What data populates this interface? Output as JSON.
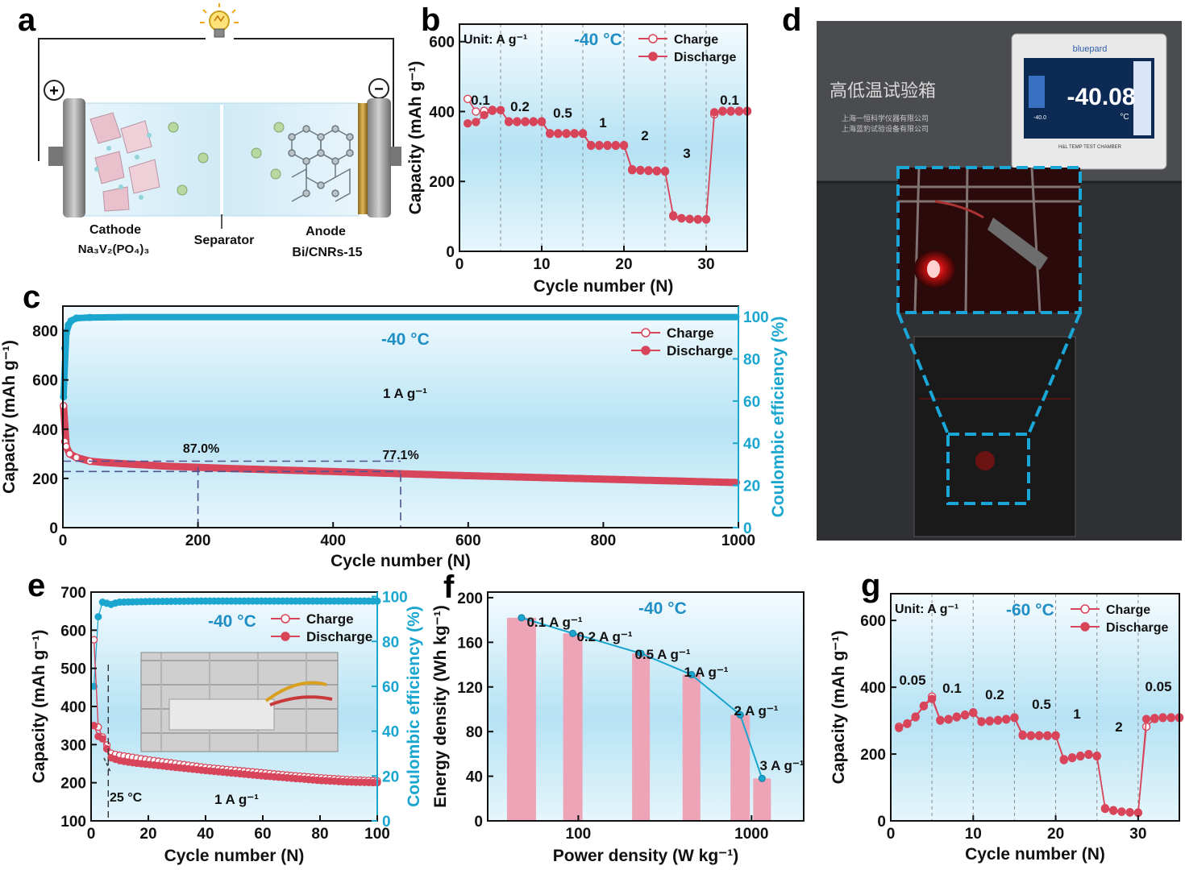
{
  "colors": {
    "charge": "#d8455a",
    "discharge": "#d8455a",
    "ce": "#1aa6cf",
    "bar": "#eca4b6",
    "bg_top": "#d8f0fa",
    "bg_mid": "#9fd8ef",
    "dash": "#52528f"
  },
  "panels": {
    "a": {
      "letter": "a",
      "cathode_label": "Cathode",
      "cathode_formula": "Na₃V₂(PO₄)₃",
      "separator_label": "Separator",
      "anode_label": "Anode",
      "anode_material": "Bi/CNRs-15",
      "plus_symbol": "+",
      "minus_symbol": "−",
      "icons": [
        "light-bulb-icon"
      ]
    },
    "d": {
      "letter": "d",
      "chamber_label": "高低温试验箱",
      "brand": "bluepard",
      "company_line1": "上海一恒科学仪器有限公司",
      "company_line2": "上海蓝豹试验设备有限公司",
      "display_value": "-40.08",
      "display_unit": "°C",
      "display_small": "-40.0",
      "footer_label": "H&L TEMP TEST CHAMBER"
    },
    "e_inset": {
      "label_25c": "25 °C"
    }
  },
  "chart_data": [
    {
      "id": "b",
      "letter": "b",
      "type": "scatter",
      "title": "",
      "xlabel": "Cycle number (N)",
      "ylabel": "Capacity (mAh g⁻¹)",
      "xlim": [
        0,
        35
      ],
      "ylim": [
        0,
        650
      ],
      "xticks": [
        0,
        10,
        20,
        30
      ],
      "yticks": [
        0,
        200,
        400,
        600
      ],
      "unit_note": "Unit: A g⁻¹",
      "temperature": "-40 °C",
      "legend": [
        "Charge",
        "Discharge"
      ],
      "rate_labels": [
        {
          "text": "0.1",
          "x": 2.5,
          "y": 450
        },
        {
          "text": "0.2",
          "x": 7.2,
          "y": 425
        },
        {
          "text": "0.5",
          "x": 2.5,
          "y": 405,
          "shift": 10
        },
        {
          "text": "1",
          "x": 17.4,
          "y": 385
        },
        {
          "text": "2",
          "x": 22.6,
          "y": 325
        },
        {
          "text": "3",
          "x": 27.6,
          "y": 270
        },
        {
          "text": "0.1",
          "x": 32.8,
          "y": 450
        }
      ],
      "dividers": [
        5,
        10,
        15,
        20,
        25,
        30
      ],
      "series": [
        {
          "name": "Charge",
          "x": [
            1,
            2,
            3,
            4,
            5,
            6,
            7,
            8,
            9,
            10,
            11,
            12,
            13,
            14,
            15,
            16,
            17,
            18,
            19,
            20,
            21,
            22,
            23,
            24,
            25,
            26,
            27,
            28,
            29,
            30,
            31,
            32,
            33,
            34,
            35
          ],
          "values": [
            436,
            400,
            402,
            405,
            404,
            372,
            372,
            372,
            372,
            372,
            338,
            338,
            338,
            338,
            338,
            304,
            304,
            304,
            304,
            304,
            235,
            233,
            232,
            231,
            230,
            103,
            95,
            93,
            92,
            92,
            392,
            402,
            402,
            402,
            402
          ]
        },
        {
          "name": "Discharge",
          "x": [
            1,
            2,
            3,
            4,
            5,
            6,
            7,
            8,
            9,
            10,
            11,
            12,
            13,
            14,
            15,
            16,
            17,
            18,
            19,
            20,
            21,
            22,
            23,
            24,
            25,
            26,
            27,
            28,
            29,
            30,
            31,
            32,
            33,
            34,
            35
          ],
          "values": [
            366,
            370,
            390,
            402,
            404,
            370,
            370,
            370,
            370,
            370,
            336,
            336,
            336,
            336,
            336,
            302,
            302,
            302,
            302,
            302,
            232,
            231,
            230,
            229,
            228,
            100,
            94,
            92,
            91,
            91,
            398,
            400,
            400,
            400,
            400
          ]
        }
      ]
    },
    {
      "id": "c",
      "letter": "c",
      "type": "scatter",
      "xlabel": "Cycle number (N)",
      "ylabel": "Capacity (mAh g⁻¹)",
      "y2label": "Coulombic efficiency (%)",
      "xlim": [
        0,
        1000
      ],
      "ylim": [
        0,
        900
      ],
      "y2lim": [
        0,
        105
      ],
      "xticks": [
        0,
        200,
        400,
        600,
        800,
        1000
      ],
      "yticks": [
        0,
        200,
        400,
        600,
        800
      ],
      "y2ticks": [
        0,
        20,
        40,
        60,
        80,
        100
      ],
      "temperature": "-40 °C",
      "current": "1 A g⁻¹",
      "legend": [
        "Charge",
        "Discharge"
      ],
      "retention_200": "87.0%",
      "retention_500": "77.1%",
      "series": [
        {
          "name": "Capacity",
          "x": [
            1,
            3,
            5,
            10,
            20,
            40,
            60,
            100,
            150,
            200,
            250,
            300,
            400,
            500,
            600,
            700,
            800,
            900,
            1000
          ],
          "values": [
            495,
            350,
            330,
            300,
            285,
            270,
            265,
            258,
            250,
            245,
            240,
            236,
            228,
            219,
            211,
            204,
            197,
            190,
            183
          ]
        },
        {
          "name": "Coulombic efficiency",
          "x": [
            1,
            3,
            5,
            8,
            12,
            20,
            40,
            100,
            200,
            400,
            600,
            800,
            1000
          ],
          "values": [
            62,
            85,
            92,
            96,
            98,
            99.3,
            99.6,
            99.8,
            99.8,
            99.8,
            99.8,
            99.8,
            99.8
          ]
        }
      ]
    },
    {
      "id": "e",
      "letter": "e",
      "type": "scatter",
      "xlabel": "Cycle number (N)",
      "ylabel": "Capacity (mAh g⁻¹)",
      "y2label": "Coulombic efficiency (%)",
      "xlim": [
        0,
        100
      ],
      "ylim": [
        100,
        700
      ],
      "y2lim": [
        0,
        102
      ],
      "xticks": [
        0,
        20,
        40,
        60,
        80,
        100
      ],
      "yticks": [
        100,
        200,
        300,
        400,
        500,
        600,
        700
      ],
      "y2ticks": [
        0,
        20,
        40,
        60,
        80,
        100
      ],
      "temperature": "-40 °C",
      "current": "1 A g⁻¹",
      "legend": [
        "Charge",
        "Discharge"
      ],
      "series": [
        {
          "name": "Charge",
          "x": [
            1,
            2,
            3,
            4,
            5,
            6,
            8,
            10,
            15,
            20,
            30,
            40,
            50,
            60,
            70,
            80,
            90,
            100
          ],
          "values": [
            575,
            362,
            330,
            320,
            318,
            280,
            275,
            272,
            266,
            260,
            250,
            240,
            233,
            226,
            219,
            213,
            208,
            205
          ]
        },
        {
          "name": "Discharge",
          "x": [
            1,
            2,
            3,
            4,
            5,
            6,
            8,
            10,
            15,
            20,
            30,
            40,
            50,
            60,
            70,
            80,
            90,
            100
          ],
          "values": [
            350,
            325,
            318,
            315,
            310,
            268,
            263,
            258,
            252,
            248,
            240,
            232,
            225,
            218,
            212,
            206,
            202,
            200
          ]
        },
        {
          "name": "Coulombic efficiency",
          "x": [
            1,
            2,
            3,
            4,
            5,
            6,
            8,
            10,
            20,
            40,
            60,
            80,
            100
          ],
          "values": [
            60,
            85,
            97,
            97.5,
            98,
            96,
            97,
            97.5,
            97.8,
            98,
            98,
            98,
            98
          ]
        }
      ]
    },
    {
      "id": "f",
      "letter": "f",
      "type": "bar",
      "xscale": "log",
      "xlabel": "Power density (W kg⁻¹)",
      "ylabel": "Energy density (Wh kg⁻¹)",
      "xlim": [
        30,
        2000
      ],
      "ylim": [
        0,
        205
      ],
      "xticks": [
        100,
        1000
      ],
      "yticks": [
        0,
        40,
        80,
        120,
        160,
        200
      ],
      "temperature": "-40 °C",
      "categories": [
        "0.1 A g⁻¹",
        "0.2 A g⁻¹",
        "0.5 A g⁻¹",
        "1 A g⁻¹",
        "2 A g⁻¹",
        "3 A g⁻¹"
      ],
      "power": [
        47,
        93,
        230,
        450,
        860,
        1150
      ],
      "values": [
        182,
        168,
        150,
        131,
        95,
        38
      ]
    },
    {
      "id": "g",
      "letter": "g",
      "type": "scatter",
      "xlabel": "Cycle number (N)",
      "ylabel": "Capacity (mAh g⁻¹)",
      "xlim": [
        0,
        35
      ],
      "ylim": [
        0,
        680
      ],
      "xticks": [
        0,
        10,
        20,
        30
      ],
      "yticks": [
        0,
        200,
        400,
        600
      ],
      "unit_note": "Unit: A g⁻¹",
      "temperature": "-60 °C",
      "legend": [
        "Charge",
        "Discharge"
      ],
      "rate_labels": [
        {
          "text": "0.05",
          "x": 2.6,
          "y": 430
        },
        {
          "text": "0.1",
          "x": 7.5,
          "y": 400
        },
        {
          "text": "0.2",
          "x": 12.5,
          "y": 380
        },
        {
          "text": "0.5",
          "x": 17.8,
          "y": 345
        },
        {
          "text": "1",
          "x": 22.8,
          "y": 320
        },
        {
          "text": "2",
          "x": 27.8,
          "y": 290
        },
        {
          "text": "0.05",
          "x": 32.5,
          "y": 415
        }
      ],
      "dividers": [
        5,
        10,
        15,
        20,
        25,
        30
      ],
      "series": [
        {
          "name": "Charge",
          "x": [
            1,
            2,
            3,
            4,
            5,
            6,
            7,
            8,
            9,
            10,
            11,
            12,
            13,
            14,
            15,
            16,
            17,
            18,
            19,
            20,
            21,
            22,
            23,
            24,
            25,
            26,
            27,
            28,
            29,
            30,
            31,
            32,
            33,
            34,
            35
          ],
          "values": [
            282,
            292,
            312,
            345,
            372,
            302,
            305,
            312,
            318,
            325,
            298,
            300,
            302,
            305,
            310,
            258,
            256,
            256,
            256,
            256,
            185,
            190,
            195,
            200,
            195,
            38,
            32,
            28,
            26,
            25,
            282,
            305,
            308,
            308,
            308
          ]
        },
        {
          "name": "Discharge",
          "x": [
            1,
            2,
            3,
            4,
            5,
            6,
            7,
            8,
            9,
            10,
            11,
            12,
            13,
            14,
            15,
            16,
            17,
            18,
            19,
            20,
            21,
            22,
            23,
            24,
            25,
            26,
            27,
            28,
            29,
            30,
            31,
            32,
            33,
            34,
            35
          ],
          "values": [
            278,
            290,
            310,
            343,
            365,
            300,
            303,
            310,
            316,
            323,
            296,
            298,
            300,
            303,
            308,
            255,
            254,
            254,
            254,
            254,
            182,
            188,
            193,
            198,
            193,
            36,
            30,
            27,
            25,
            24,
            305,
            308,
            310,
            310,
            310
          ]
        }
      ]
    }
  ]
}
